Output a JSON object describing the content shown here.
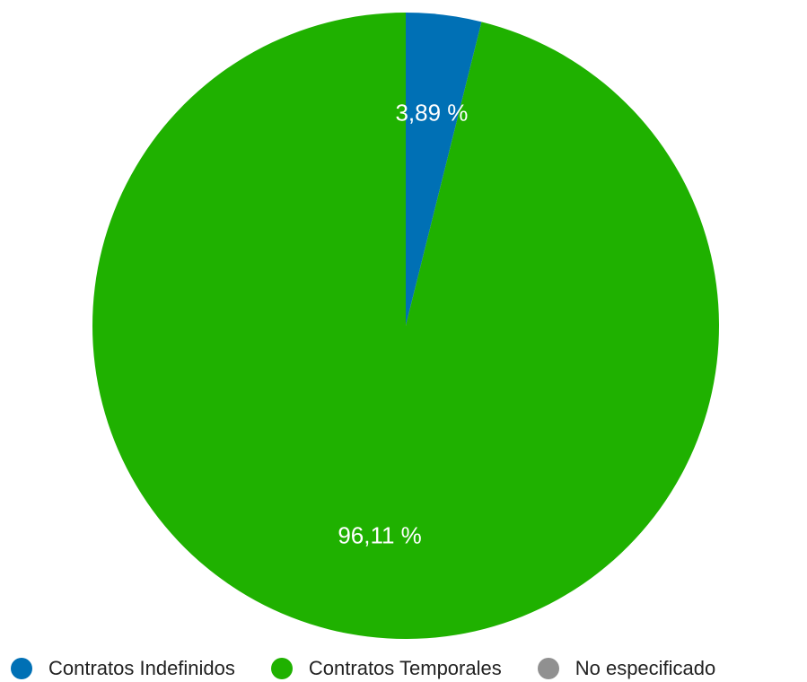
{
  "chart_data": {
    "type": "pie",
    "title": "",
    "legend_position": "bottom",
    "slices": [
      {
        "name": "Contratos Indefinidos",
        "value": 3.89,
        "label": "3,89 %",
        "color": "#0070b5"
      },
      {
        "name": "Contratos Temporales",
        "value": 96.11,
        "label": "96,11 %",
        "color": "#1fb100"
      },
      {
        "name": "No especificado",
        "value": 0,
        "label": "",
        "color": "#909090"
      }
    ]
  }
}
